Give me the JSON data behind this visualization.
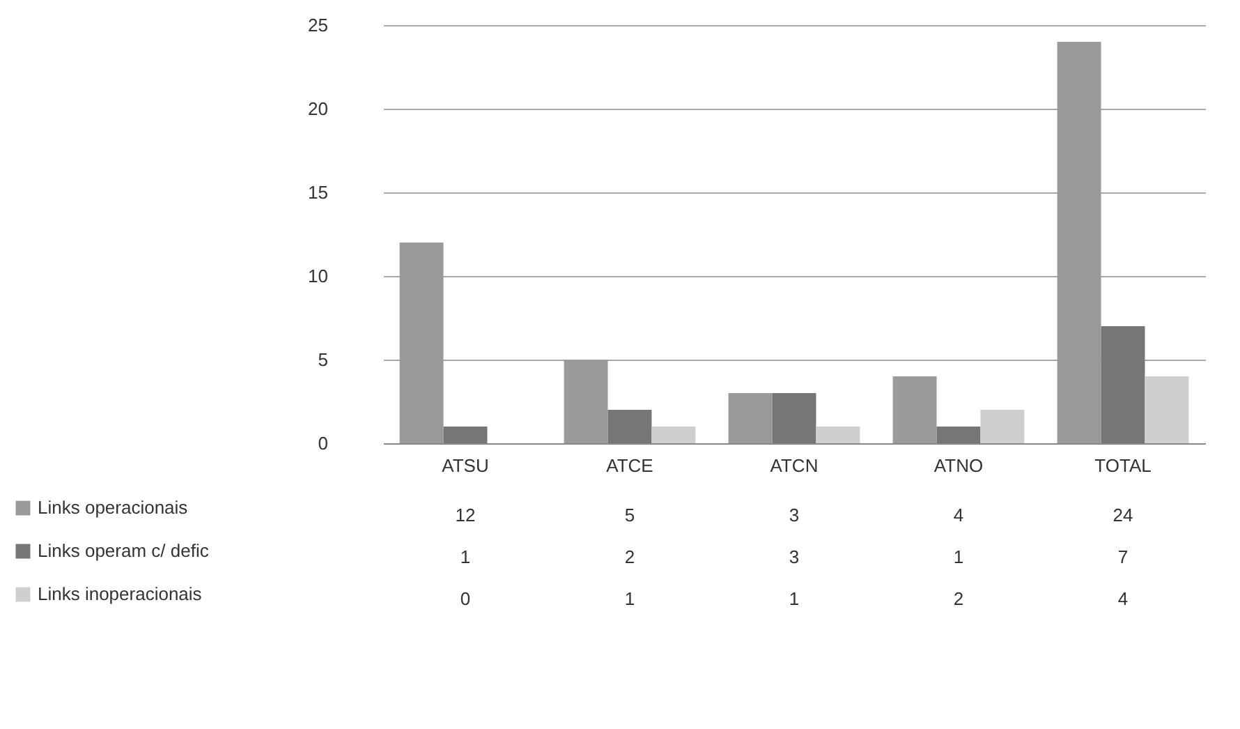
{
  "chart_data": {
    "type": "bar",
    "categories": [
      "ATSU",
      "ATCE",
      "ATCN",
      "ATNO",
      "TOTAL"
    ],
    "series": [
      {
        "name": "Links operacionais",
        "color": "#9a9a9a",
        "values": [
          12,
          5,
          3,
          4,
          24
        ]
      },
      {
        "name": "Links operam c/ defic",
        "color": "#767676",
        "values": [
          1,
          2,
          3,
          1,
          7
        ]
      },
      {
        "name": "Links inoperacionais",
        "color": "#cfcfcf",
        "values": [
          0,
          1,
          1,
          2,
          4
        ]
      }
    ],
    "ylim": [
      0,
      25
    ],
    "yticks": [
      0,
      5,
      10,
      15,
      20,
      25
    ],
    "grid": "y",
    "legend": "bottom",
    "data_labels": true
  }
}
